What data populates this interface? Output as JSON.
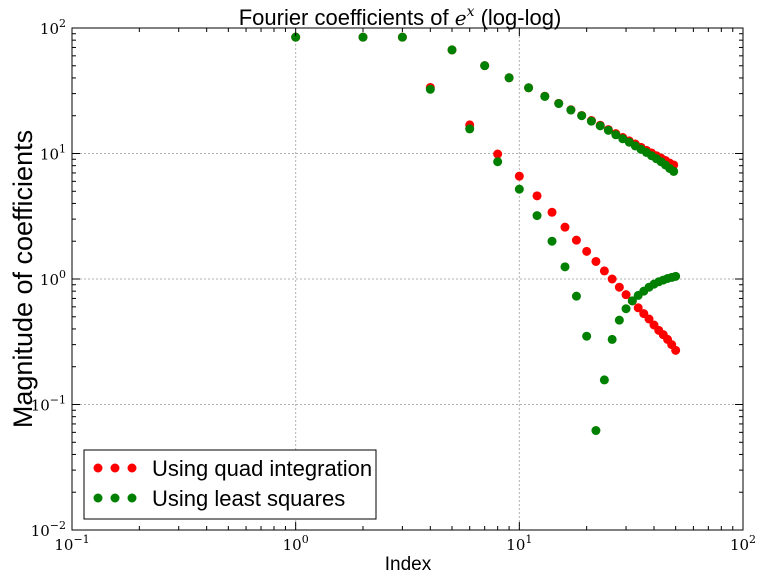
{
  "chart_data": {
    "type": "scatter",
    "title": {
      "prefix": "Fourier coefficients of ",
      "math_base": "e",
      "math_sup": "x",
      "suffix": " (log-log)"
    },
    "xlabel": "Index",
    "ylabel": "Magnitude of coefficients",
    "x_scale": "log",
    "y_scale": "log",
    "xlim": [
      0.1,
      100
    ],
    "ylim": [
      0.01,
      100
    ],
    "x_ticks": [
      {
        "value": 0.1,
        "base": "10",
        "exp": "−1"
      },
      {
        "value": 1,
        "base": "10",
        "exp": "0"
      },
      {
        "value": 10,
        "base": "10",
        "exp": "1"
      },
      {
        "value": 100,
        "base": "10",
        "exp": "2"
      }
    ],
    "y_ticks": [
      {
        "value": 0.01,
        "base": "10",
        "exp": "−2"
      },
      {
        "value": 0.1,
        "base": "10",
        "exp": "−1"
      },
      {
        "value": 1,
        "base": "10",
        "exp": "0"
      },
      {
        "value": 10,
        "base": "10",
        "exp": "1"
      },
      {
        "value": 100,
        "base": "10",
        "exp": "2"
      }
    ],
    "grid": true,
    "legend_position": "lower-left",
    "series": [
      {
        "name": "Using quad integration",
        "color": "#ff0000",
        "x": [
          1,
          2,
          3,
          4,
          5,
          6,
          7,
          8,
          9,
          10,
          11,
          12,
          13,
          14,
          15,
          16,
          17,
          18,
          19,
          20,
          21,
          22,
          23,
          24,
          25,
          26,
          27,
          28,
          29,
          30,
          31,
          32,
          33,
          34,
          35,
          36,
          37,
          38,
          39,
          40,
          41,
          42,
          43,
          44,
          45,
          46,
          47,
          48,
          49,
          50
        ],
        "y": [
          84.5,
          84.5,
          84.5,
          33.6,
          66.9,
          16.9,
          50.1,
          9.9,
          40.1,
          6.6,
          33.4,
          4.6,
          28.6,
          3.4,
          25.1,
          2.59,
          22.3,
          2.04,
          20.1,
          1.66,
          18.3,
          1.38,
          16.8,
          1.16,
          15.5,
          1.0,
          14.4,
          0.86,
          13.4,
          0.75,
          12.6,
          0.67,
          11.9,
          0.59,
          11.2,
          0.53,
          10.6,
          0.48,
          10.1,
          0.43,
          9.6,
          0.39,
          9.2,
          0.36,
          8.8,
          0.33,
          8.4,
          0.3,
          8.1,
          0.27
        ]
      },
      {
        "name": "Using least squares",
        "color": "#008000",
        "x": [
          1,
          2,
          3,
          4,
          5,
          6,
          7,
          8,
          9,
          10,
          11,
          12,
          13,
          14,
          15,
          16,
          17,
          18,
          19,
          20,
          21,
          22,
          23,
          24,
          25,
          26,
          27,
          28,
          29,
          30,
          31,
          32,
          33,
          34,
          35,
          36,
          37,
          38,
          39,
          40,
          41,
          42,
          43,
          44,
          45,
          46,
          47,
          48,
          49,
          50
        ],
        "y": [
          84.5,
          84.5,
          84.5,
          32.5,
          66.9,
          15.7,
          50.1,
          8.6,
          40.1,
          5.2,
          33.4,
          3.2,
          28.5,
          2.0,
          25.0,
          1.25,
          22.2,
          0.73,
          20.0,
          0.35,
          18.1,
          0.062,
          16.6,
          0.157,
          15.3,
          0.33,
          14.1,
          0.47,
          13.1,
          0.58,
          12.3,
          0.67,
          11.5,
          0.74,
          10.8,
          0.8,
          10.2,
          0.86,
          9.6,
          0.91,
          9.1,
          0.95,
          8.6,
          0.98,
          8.1,
          1.01,
          7.6,
          1.03,
          7.2,
          1.05
        ]
      }
    ]
  }
}
